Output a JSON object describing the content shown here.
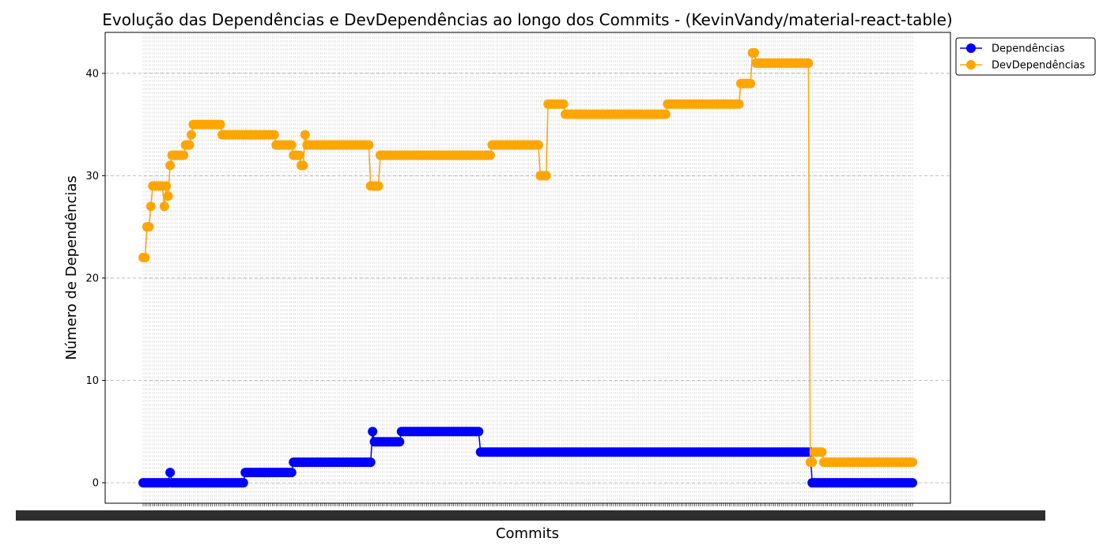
{
  "chart_data": {
    "type": "line",
    "title": "Evolução das Dependências e DevDependências ao longo dos Commits - (KevinVandy/material-react-table)",
    "xlabel": "Commits",
    "ylabel": "Número de Dependências",
    "ylim": [
      -2,
      44
    ],
    "yticks": [
      0,
      10,
      20,
      30,
      40
    ],
    "grid": true,
    "legend_position": "top-right outside",
    "x_tick_labels_legible": false,
    "commit_count": 400,
    "series": [
      {
        "name": "Dependências",
        "color": "#0000ff",
        "segments": [
          [
            0,
            0
          ],
          [
            14,
            1
          ],
          [
            15,
            0
          ],
          [
            53,
            1
          ],
          [
            78,
            2
          ],
          [
            119,
            5
          ],
          [
            120,
            4
          ],
          [
            134,
            5
          ],
          [
            175,
            3
          ],
          [
            347,
            0
          ]
        ]
      },
      {
        "name": "DevDependências",
        "color": "#ffa500",
        "segments": [
          [
            0,
            22
          ],
          [
            2,
            25
          ],
          [
            4,
            27
          ],
          [
            5,
            29
          ],
          [
            11,
            27
          ],
          [
            12,
            29
          ],
          [
            13,
            28
          ],
          [
            14,
            31
          ],
          [
            15,
            32
          ],
          [
            22,
            33
          ],
          [
            25,
            34
          ],
          [
            26,
            35
          ],
          [
            41,
            34
          ],
          [
            69,
            33
          ],
          [
            78,
            32
          ],
          [
            82,
            31
          ],
          [
            84,
            34
          ],
          [
            85,
            33
          ],
          [
            118,
            29
          ],
          [
            123,
            32
          ],
          [
            181,
            33
          ],
          [
            206,
            30
          ],
          [
            210,
            37
          ],
          [
            219,
            36
          ],
          [
            272,
            37
          ],
          [
            310,
            39
          ],
          [
            316,
            42
          ],
          [
            318,
            41
          ],
          [
            346,
            2
          ],
          [
            348,
            3
          ],
          [
            353,
            2
          ]
        ]
      }
    ]
  }
}
